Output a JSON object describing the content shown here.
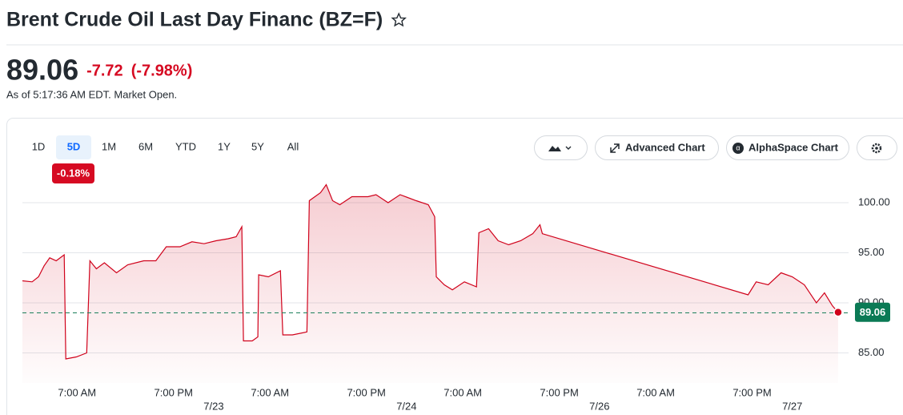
{
  "header": {
    "title": "Brent Crude Oil Last Day Financ (BZ=F)",
    "price": "89.06",
    "change": "-7.72",
    "change_pct": "(-7.98%)",
    "timestamp": "As of 5:17:36 AM EDT. Market Open."
  },
  "toolbar": {
    "ranges": [
      "1D",
      "5D",
      "1M",
      "6M",
      "YTD",
      "1Y",
      "5Y",
      "All"
    ],
    "selected_index": 1,
    "range_change": "-0.18%",
    "advanced": "Advanced Chart",
    "alphaspace": "AlphaSpace Chart"
  },
  "chart_data": {
    "type": "line",
    "color": "#d0021b",
    "x": [
      0.2,
      1.4,
      2.2,
      2.9,
      3.6,
      4.4,
      5.4,
      5.6,
      6.9,
      8.2,
      8.6,
      9.4,
      10.4,
      11.9,
      13.3,
      15.3,
      16.8,
      18.1,
      19.8,
      21.3,
      22.8,
      24.3,
      25.8,
      26.8,
      27.5,
      27.7,
      28.8,
      29.5,
      29.6,
      30.8,
      32.3,
      32.6,
      33.8,
      35.6,
      35.9,
      37.3,
      38.0,
      38.8,
      39.7,
      41.2,
      43.2,
      44.2,
      45.7,
      47.2,
      49.2,
      50.7,
      51.5,
      51.7,
      52.7,
      53.7,
      55.2,
      56.7,
      57.0,
      58.2,
      59.4,
      60.7,
      62.2,
      63.7,
      64.6,
      64.9,
      90.5,
      91.5,
      93.0,
      94.6,
      96.0,
      97.5,
      99.0,
      100.0,
      101.0,
      101.7
    ],
    "values": [
      92.2,
      92.1,
      92.6,
      93.7,
      94.5,
      94.2,
      94.8,
      84.4,
      84.6,
      85.0,
      94.2,
      93.4,
      94.0,
      93.0,
      93.8,
      94.2,
      94.2,
      95.6,
      95.6,
      96.1,
      95.9,
      96.2,
      96.4,
      96.6,
      97.6,
      86.2,
      86.2,
      86.6,
      92.8,
      92.6,
      93.2,
      86.8,
      86.8,
      87.1,
      100.2,
      101.0,
      101.8,
      100.2,
      99.8,
      100.6,
      100.6,
      100.8,
      100.0,
      100.8,
      100.2,
      99.8,
      98.6,
      92.6,
      91.8,
      91.3,
      92.1,
      91.6,
      97.0,
      97.4,
      96.2,
      95.8,
      96.2,
      96.9,
      97.8,
      96.9,
      90.8,
      92.1,
      91.8,
      93.0,
      92.6,
      91.8,
      90.0,
      91.0,
      89.7,
      89.06
    ],
    "xlim": [
      0,
      103
    ],
    "xticks": [
      {
        "value": 7,
        "label": "7:00 AM"
      },
      {
        "value": 19,
        "label": "7:00 PM"
      },
      {
        "value": 31,
        "label": "7:00 AM"
      },
      {
        "value": 43,
        "label": "7:00 PM"
      },
      {
        "value": 55,
        "label": "7:00 AM"
      },
      {
        "value": 67,
        "label": "7:00 PM"
      },
      {
        "value": 79,
        "label": "7:00 AM"
      },
      {
        "value": 91,
        "label": "7:00 PM"
      }
    ],
    "date_ticks": [
      {
        "value": 24,
        "label": "7/23"
      },
      {
        "value": 48,
        "label": "7/24"
      },
      {
        "value": 72,
        "label": "7/26"
      },
      {
        "value": 96,
        "label": "7/27"
      }
    ],
    "ylim": [
      82,
      102
    ],
    "yticks": [
      {
        "value": 85,
        "label": "85.00"
      },
      {
        "value": 90,
        "label": "90.00"
      },
      {
        "value": 95,
        "label": "95.00"
      },
      {
        "value": 100,
        "label": "100.00"
      }
    ],
    "reference_line": 89,
    "grid": true
  }
}
